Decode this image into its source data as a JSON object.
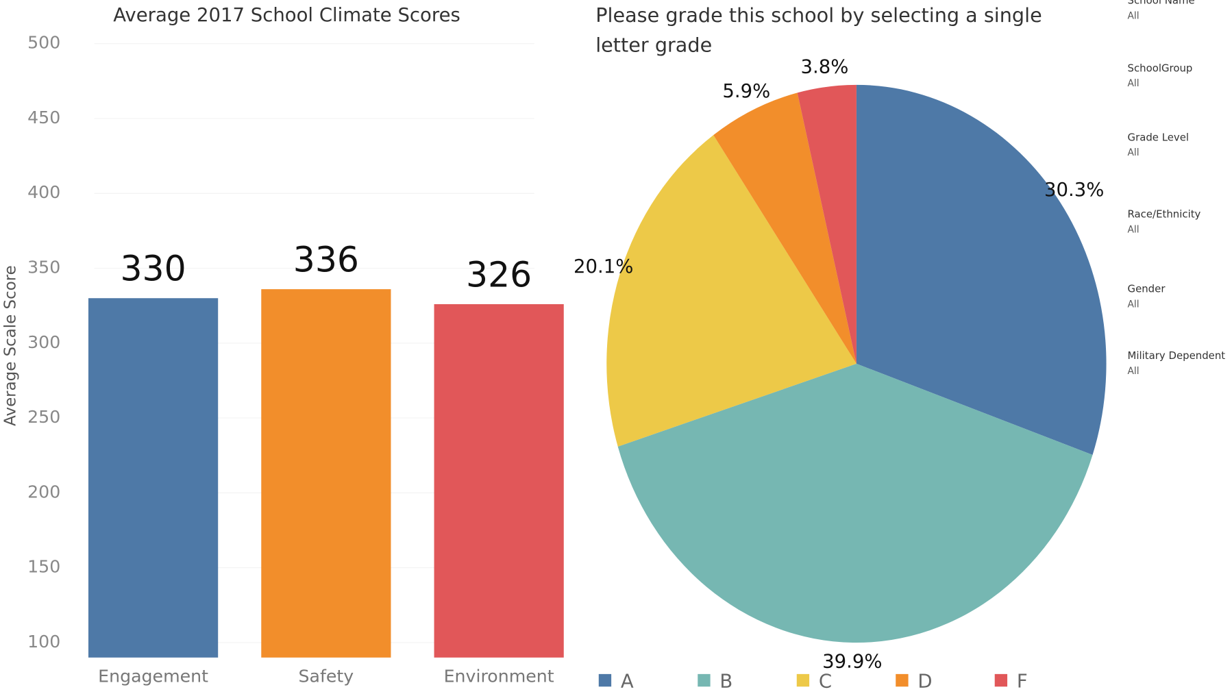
{
  "chart_data": [
    {
      "type": "bar",
      "title": "Average 2017 School Climate Scores",
      "y_label": "Average Scale Score",
      "categories": [
        "Engagement",
        "Safety",
        "Environment"
      ],
      "values": [
        330,
        336,
        326
      ],
      "colors": [
        "#4e79a7",
        "#f28e2b",
        "#e15759"
      ],
      "ylim": [
        90,
        505
      ],
      "yticks": [
        100,
        150,
        200,
        250,
        300,
        350,
        400,
        450,
        500
      ],
      "grid": true
    },
    {
      "type": "pie",
      "title": "Please grade this school by selecting a single letter grade",
      "categories": [
        "A",
        "B",
        "C",
        "D",
        "F"
      ],
      "values": [
        30.3,
        39.9,
        20.1,
        5.9,
        3.8
      ],
      "value_labels": [
        "30.3%",
        "39.9%",
        "20.1%",
        "5.9%",
        "3.8%"
      ],
      "colors": [
        "#4e79a7",
        "#76b7b2",
        "#edc948",
        "#f28e2b",
        "#e15759"
      ],
      "legend": "bottom"
    }
  ],
  "filters": [
    {
      "label": "School Name",
      "value": "All"
    },
    {
      "label": "SchoolGroup",
      "value": "All"
    },
    {
      "label": "Grade Level",
      "value": "All"
    },
    {
      "label": "Race/Ethnicity",
      "value": "All"
    },
    {
      "label": "Gender",
      "value": "All"
    },
    {
      "label": "Military Dependent",
      "value": "All"
    }
  ]
}
